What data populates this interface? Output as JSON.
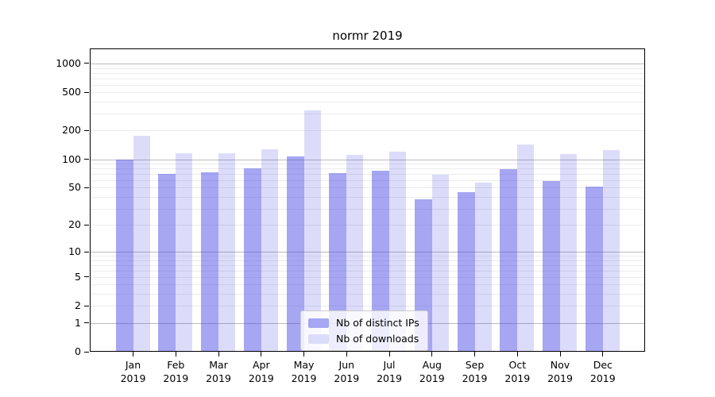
{
  "chart_data": {
    "type": "bar",
    "title": "normr 2019",
    "categories": [
      "Jan 2019",
      "Feb 2019",
      "Mar 2019",
      "Apr 2019",
      "May 2019",
      "Jun 2019",
      "Jul 2019",
      "Aug 2019",
      "Sep 2019",
      "Oct 2019",
      "Nov 2019",
      "Dec 2019"
    ],
    "series": [
      {
        "name": "Nb of distinct IPs",
        "color": "#4646e6",
        "alpha": 0.48,
        "values": [
          100,
          70,
          73,
          80,
          107,
          71,
          76,
          38,
          45,
          79,
          59,
          51
        ]
      },
      {
        "name": "Nb of downloads",
        "color": "#4646e6",
        "alpha": 0.19,
        "values": [
          176,
          116,
          115,
          128,
          322,
          111,
          121,
          69,
          57,
          143,
          114,
          124
        ]
      }
    ],
    "yscale": "log1p",
    "y_ticks": [
      1000,
      500,
      200,
      100,
      50,
      20,
      10,
      5,
      2,
      1,
      0
    ],
    "ylim": [
      0,
      1430
    ],
    "grid": {
      "major_color": "#bbbbbb",
      "minor_color": "#ececec",
      "major_values": [
        1,
        10,
        100,
        1000
      ]
    },
    "legend": {
      "position": "lower-center",
      "bg": "#ffffff",
      "border": "#cccccc"
    },
    "axis_color": "#000000"
  }
}
